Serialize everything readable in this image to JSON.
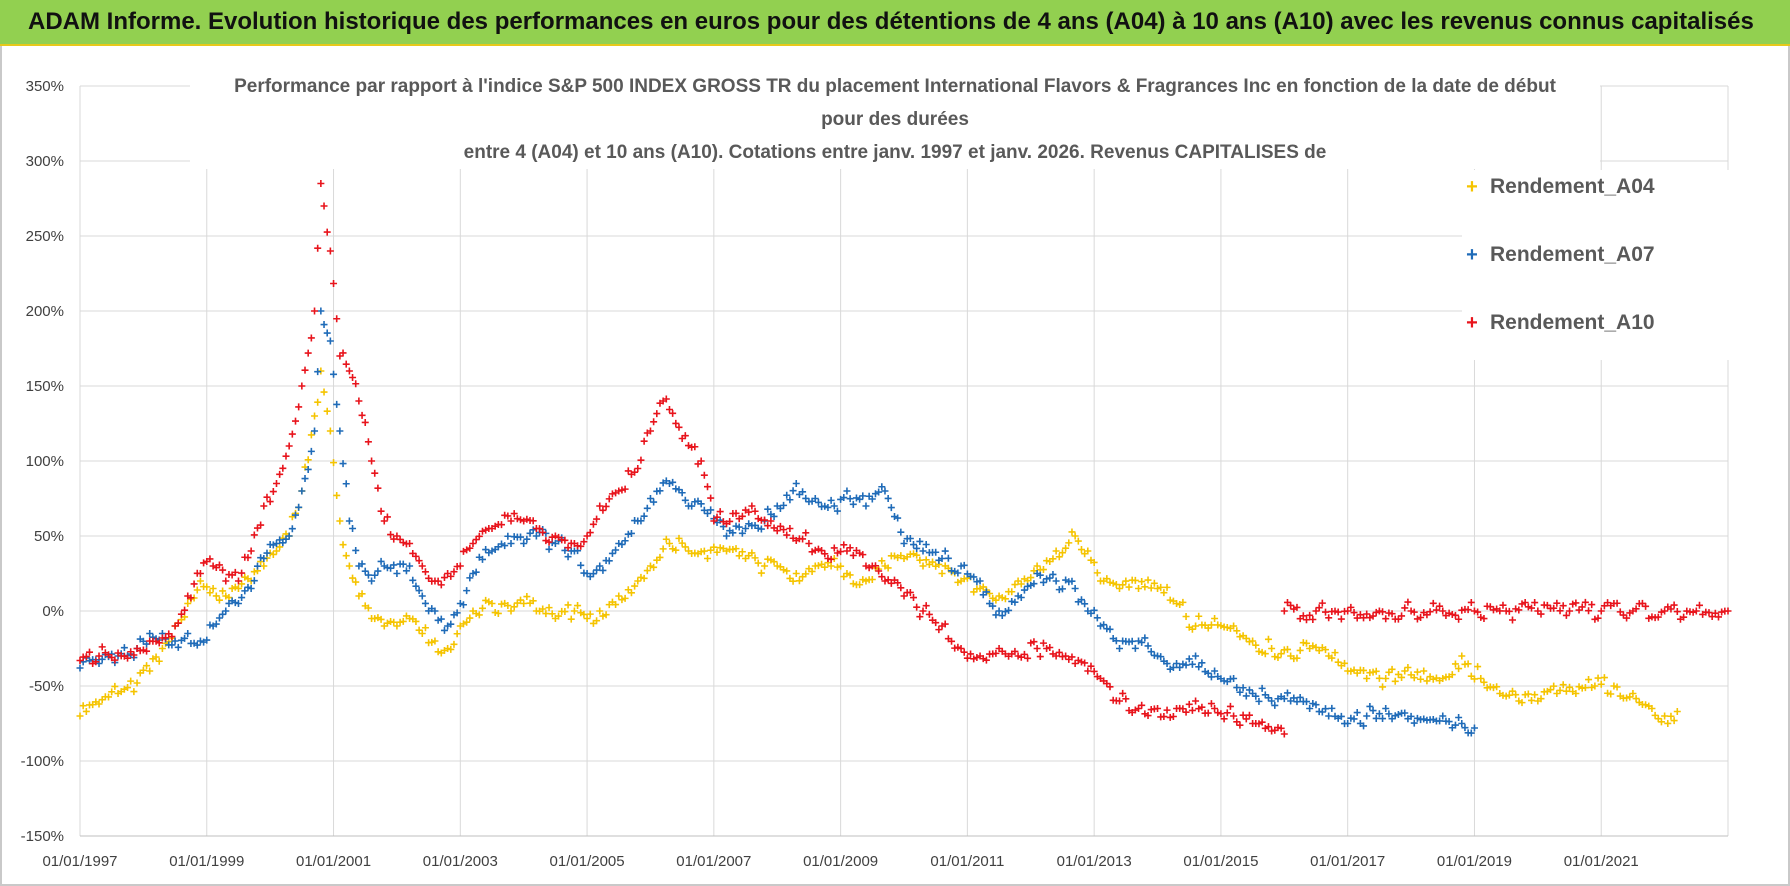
{
  "banner": {
    "title": "ADAM Informe. Evolution historique des performances en euros pour des détentions de 4 ans (A04) à 10 ans (A10) avec les revenus connus capitalisés"
  },
  "chart_data": {
    "type": "scatter",
    "title_lines": [
      "Performance par rapport à l'indice S&P 500 INDEX GROSS TR  du placement International Flavors & Fragrances Inc en fonction de la date de début",
      "pour des durées",
      "entre 4 (A04) et 10 ans (A10).  Cotations entre janv. 1997 et janv. 2026. Revenus CAPITALISES de"
    ],
    "xlabel": "",
    "ylabel": "",
    "xlim": [
      1997.0,
      2023.0
    ],
    "ylim": [
      -150,
      350
    ],
    "y_ticks": [
      -150,
      -100,
      -50,
      0,
      50,
      100,
      150,
      200,
      250,
      300,
      350
    ],
    "y_tick_labels": [
      "-150%",
      "-100%",
      "-50%",
      "0%",
      "50%",
      "100%",
      "150%",
      "200%",
      "250%",
      "300%",
      "350%"
    ],
    "x_ticks": [
      1997,
      1999,
      2001,
      2003,
      2005,
      2007,
      2009,
      2011,
      2013,
      2015,
      2017,
      2019,
      2021
    ],
    "x_tick_labels": [
      "01/01/1997",
      "01/01/1999",
      "01/01/2001",
      "01/01/2003",
      "01/01/2005",
      "01/01/2007",
      "01/01/2009",
      "01/01/2011",
      "01/01/2013",
      "01/01/2015",
      "01/01/2017",
      "01/01/2019",
      "01/01/2021"
    ],
    "grid": true,
    "legend_position": "top-right",
    "marker": "+",
    "series": [
      {
        "name": "Rendement_A04",
        "color": "#f5c400",
        "points": [
          [
            1997.0,
            -70
          ],
          [
            1997.3,
            -62
          ],
          [
            1997.6,
            -55
          ],
          [
            1997.9,
            -48
          ],
          [
            1998.1,
            -40
          ],
          [
            1998.3,
            -25
          ],
          [
            1998.5,
            -10
          ],
          [
            1998.7,
            5
          ],
          [
            1998.9,
            20
          ],
          [
            1999.1,
            15
          ],
          [
            1999.3,
            10
          ],
          [
            1999.5,
            15
          ],
          [
            1999.7,
            20
          ],
          [
            1999.9,
            30
          ],
          [
            2000.1,
            40
          ],
          [
            2000.3,
            50
          ],
          [
            2000.5,
            80
          ],
          [
            2000.7,
            130
          ],
          [
            2000.8,
            160
          ],
          [
            2000.95,
            120
          ],
          [
            2001.1,
            60
          ],
          [
            2001.25,
            30
          ],
          [
            2001.4,
            10
          ],
          [
            2001.6,
            -5
          ],
          [
            2001.8,
            -10
          ],
          [
            2002.0,
            -10
          ],
          [
            2002.2,
            -5
          ],
          [
            2002.4,
            -15
          ],
          [
            2002.6,
            -20
          ],
          [
            2002.8,
            -25
          ],
          [
            2003.0,
            -10
          ],
          [
            2003.2,
            0
          ],
          [
            2003.5,
            5
          ],
          [
            2003.8,
            0
          ],
          [
            2004.0,
            5
          ],
          [
            2004.2,
            0
          ],
          [
            2004.5,
            -5
          ],
          [
            2004.8,
            0
          ],
          [
            2005.0,
            -5
          ],
          [
            2005.2,
            0
          ],
          [
            2005.5,
            10
          ],
          [
            2005.8,
            20
          ],
          [
            2006.0,
            30
          ],
          [
            2006.3,
            45
          ],
          [
            2006.6,
            40
          ],
          [
            2006.9,
            35
          ],
          [
            2007.2,
            40
          ],
          [
            2007.5,
            35
          ],
          [
            2007.8,
            30
          ],
          [
            2008.0,
            30
          ],
          [
            2008.3,
            25
          ],
          [
            2008.6,
            30
          ],
          [
            2008.9,
            35
          ],
          [
            2009.1,
            25
          ],
          [
            2009.4,
            20
          ],
          [
            2009.7,
            30
          ],
          [
            2010.0,
            35
          ],
          [
            2010.3,
            30
          ],
          [
            2010.6,
            25
          ],
          [
            2010.9,
            20
          ],
          [
            2011.2,
            15
          ],
          [
            2011.5,
            10
          ],
          [
            2011.8,
            20
          ],
          [
            2012.1,
            30
          ],
          [
            2012.4,
            40
          ],
          [
            2012.7,
            50
          ],
          [
            2012.9,
            40
          ],
          [
            2013.1,
            20
          ],
          [
            2013.4,
            15
          ],
          [
            2013.7,
            15
          ],
          [
            2014.0,
            15
          ],
          [
            2014.3,
            5
          ],
          [
            2014.6,
            -10
          ],
          [
            2014.9,
            -5
          ],
          [
            2015.2,
            -10
          ],
          [
            2015.5,
            -20
          ],
          [
            2015.8,
            -25
          ],
          [
            2016.1,
            -30
          ],
          [
            2016.4,
            -25
          ],
          [
            2016.7,
            -30
          ],
          [
            2017.0,
            -40
          ],
          [
            2017.3,
            -45
          ],
          [
            2017.6,
            -45
          ],
          [
            2017.9,
            -40
          ],
          [
            2018.2,
            -40
          ],
          [
            2018.5,
            -45
          ],
          [
            2018.8,
            -30
          ],
          [
            2019.1,
            -45
          ],
          [
            2019.4,
            -55
          ],
          [
            2019.7,
            -60
          ],
          [
            2020.0,
            -60
          ],
          [
            2020.3,
            -55
          ],
          [
            2020.6,
            -55
          ],
          [
            2020.9,
            -50
          ],
          [
            2021.2,
            -50
          ],
          [
            2021.5,
            -55
          ],
          [
            2021.8,
            -65
          ],
          [
            2022.0,
            -70
          ],
          [
            2022.2,
            -67
          ]
        ]
      },
      {
        "name": "Rendement_A07",
        "color": "#1f6bb8",
        "points": [
          [
            1997.0,
            -38
          ],
          [
            1997.3,
            -35
          ],
          [
            1997.6,
            -30
          ],
          [
            1997.9,
            -25
          ],
          [
            1998.1,
            -15
          ],
          [
            1998.3,
            -15
          ],
          [
            1998.5,
            -20
          ],
          [
            1998.7,
            -15
          ],
          [
            1998.9,
            -20
          ],
          [
            1999.1,
            -10
          ],
          [
            1999.3,
            0
          ],
          [
            1999.5,
            5
          ],
          [
            1999.7,
            15
          ],
          [
            1999.9,
            35
          ],
          [
            2000.1,
            45
          ],
          [
            2000.3,
            50
          ],
          [
            2000.5,
            80
          ],
          [
            2000.7,
            120
          ],
          [
            2000.8,
            200
          ],
          [
            2000.95,
            180
          ],
          [
            2001.1,
            120
          ],
          [
            2001.25,
            60
          ],
          [
            2001.4,
            30
          ],
          [
            2001.6,
            20
          ],
          [
            2001.8,
            30
          ],
          [
            2002.0,
            25
          ],
          [
            2002.2,
            30
          ],
          [
            2002.4,
            10
          ],
          [
            2002.6,
            0
          ],
          [
            2002.8,
            -10
          ],
          [
            2003.0,
            5
          ],
          [
            2003.2,
            25
          ],
          [
            2003.5,
            40
          ],
          [
            2003.8,
            45
          ],
          [
            2004.0,
            45
          ],
          [
            2004.2,
            50
          ],
          [
            2004.5,
            45
          ],
          [
            2004.8,
            40
          ],
          [
            2005.0,
            25
          ],
          [
            2005.2,
            30
          ],
          [
            2005.5,
            45
          ],
          [
            2005.8,
            60
          ],
          [
            2006.0,
            75
          ],
          [
            2006.3,
            85
          ],
          [
            2006.6,
            70
          ],
          [
            2006.9,
            65
          ],
          [
            2007.2,
            50
          ],
          [
            2007.5,
            55
          ],
          [
            2007.8,
            60
          ],
          [
            2008.0,
            70
          ],
          [
            2008.3,
            85
          ],
          [
            2008.6,
            75
          ],
          [
            2008.9,
            70
          ],
          [
            2009.1,
            80
          ],
          [
            2009.4,
            70
          ],
          [
            2009.7,
            80
          ],
          [
            2010.0,
            45
          ],
          [
            2010.3,
            40
          ],
          [
            2010.6,
            35
          ],
          [
            2010.9,
            30
          ],
          [
            2011.2,
            20
          ],
          [
            2011.5,
            0
          ],
          [
            2011.8,
            10
          ],
          [
            2012.1,
            25
          ],
          [
            2012.4,
            20
          ],
          [
            2012.7,
            15
          ],
          [
            2012.9,
            0
          ],
          [
            2013.1,
            -10
          ],
          [
            2013.4,
            -25
          ],
          [
            2013.7,
            -20
          ],
          [
            2014.0,
            -30
          ],
          [
            2014.3,
            -35
          ],
          [
            2014.6,
            -30
          ],
          [
            2014.9,
            -40
          ],
          [
            2015.2,
            -45
          ],
          [
            2015.5,
            -55
          ],
          [
            2015.8,
            -60
          ],
          [
            2016.1,
            -60
          ],
          [
            2016.4,
            -65
          ],
          [
            2016.7,
            -70
          ],
          [
            2017.0,
            -75
          ],
          [
            2017.3,
            -70
          ],
          [
            2017.6,
            -65
          ],
          [
            2017.9,
            -68
          ],
          [
            2018.2,
            -72
          ],
          [
            2018.5,
            -70
          ],
          [
            2018.8,
            -75
          ],
          [
            2019.0,
            -78
          ]
        ]
      },
      {
        "name": "Rendement_A10",
        "color": "#e8141c",
        "points": [
          [
            1997.0,
            -33
          ],
          [
            1997.3,
            -30
          ],
          [
            1997.6,
            -28
          ],
          [
            1997.9,
            -25
          ],
          [
            1998.1,
            -20
          ],
          [
            1998.3,
            -18
          ],
          [
            1998.5,
            -10
          ],
          [
            1998.7,
            10
          ],
          [
            1998.9,
            25
          ],
          [
            1999.1,
            30
          ],
          [
            1999.3,
            20
          ],
          [
            1999.5,
            20
          ],
          [
            1999.7,
            40
          ],
          [
            1999.9,
            70
          ],
          [
            2000.1,
            85
          ],
          [
            2000.3,
            110
          ],
          [
            2000.5,
            150
          ],
          [
            2000.7,
            200
          ],
          [
            2000.8,
            285
          ],
          [
            2000.95,
            240
          ],
          [
            2001.1,
            170
          ],
          [
            2001.25,
            160
          ],
          [
            2001.4,
            140
          ],
          [
            2001.6,
            100
          ],
          [
            2001.8,
            60
          ],
          [
            2002.0,
            50
          ],
          [
            2002.2,
            45
          ],
          [
            2002.4,
            30
          ],
          [
            2002.6,
            20
          ],
          [
            2002.8,
            25
          ],
          [
            2003.0,
            30
          ],
          [
            2003.2,
            45
          ],
          [
            2003.5,
            55
          ],
          [
            2003.8,
            60
          ],
          [
            2004.0,
            60
          ],
          [
            2004.2,
            55
          ],
          [
            2004.5,
            50
          ],
          [
            2004.8,
            45
          ],
          [
            2005.0,
            50
          ],
          [
            2005.2,
            70
          ],
          [
            2005.5,
            80
          ],
          [
            2005.8,
            95
          ],
          [
            2006.0,
            120
          ],
          [
            2006.2,
            140
          ],
          [
            2006.5,
            115
          ],
          [
            2006.8,
            100
          ],
          [
            2007.0,
            60
          ],
          [
            2007.3,
            65
          ],
          [
            2007.6,
            70
          ],
          [
            2007.9,
            60
          ],
          [
            2008.2,
            55
          ],
          [
            2008.5,
            45
          ],
          [
            2008.8,
            35
          ],
          [
            2009.1,
            40
          ],
          [
            2009.4,
            30
          ],
          [
            2009.7,
            20
          ],
          [
            2010.0,
            10
          ],
          [
            2010.3,
            0
          ],
          [
            2010.6,
            -10
          ],
          [
            2010.9,
            -25
          ],
          [
            2011.2,
            -30
          ],
          [
            2011.5,
            -25
          ],
          [
            2011.8,
            -30
          ],
          [
            2012.1,
            -25
          ],
          [
            2012.4,
            -30
          ],
          [
            2012.7,
            -35
          ],
          [
            2012.9,
            -40
          ],
          [
            2013.1,
            -45
          ],
          [
            2013.4,
            -60
          ],
          [
            2013.7,
            -65
          ],
          [
            2014.0,
            -65
          ],
          [
            2014.3,
            -65
          ],
          [
            2014.6,
            -60
          ],
          [
            2014.9,
            -65
          ],
          [
            2015.2,
            -70
          ],
          [
            2015.5,
            -75
          ],
          [
            2015.8,
            -80
          ],
          [
            2016.0,
            -82
          ],
          [
            2016.0,
            0
          ],
          [
            2016.5,
            0
          ],
          [
            2017.0,
            0
          ],
          [
            2017.5,
            0
          ],
          [
            2018.0,
            0
          ],
          [
            2018.5,
            0
          ],
          [
            2019.0,
            0
          ],
          [
            2019.5,
            0
          ],
          [
            2020.0,
            0
          ],
          [
            2020.5,
            0
          ],
          [
            2021.0,
            0
          ],
          [
            2021.5,
            0
          ],
          [
            2022.0,
            0
          ],
          [
            2022.5,
            0
          ],
          [
            2023.0,
            0
          ]
        ]
      }
    ]
  }
}
